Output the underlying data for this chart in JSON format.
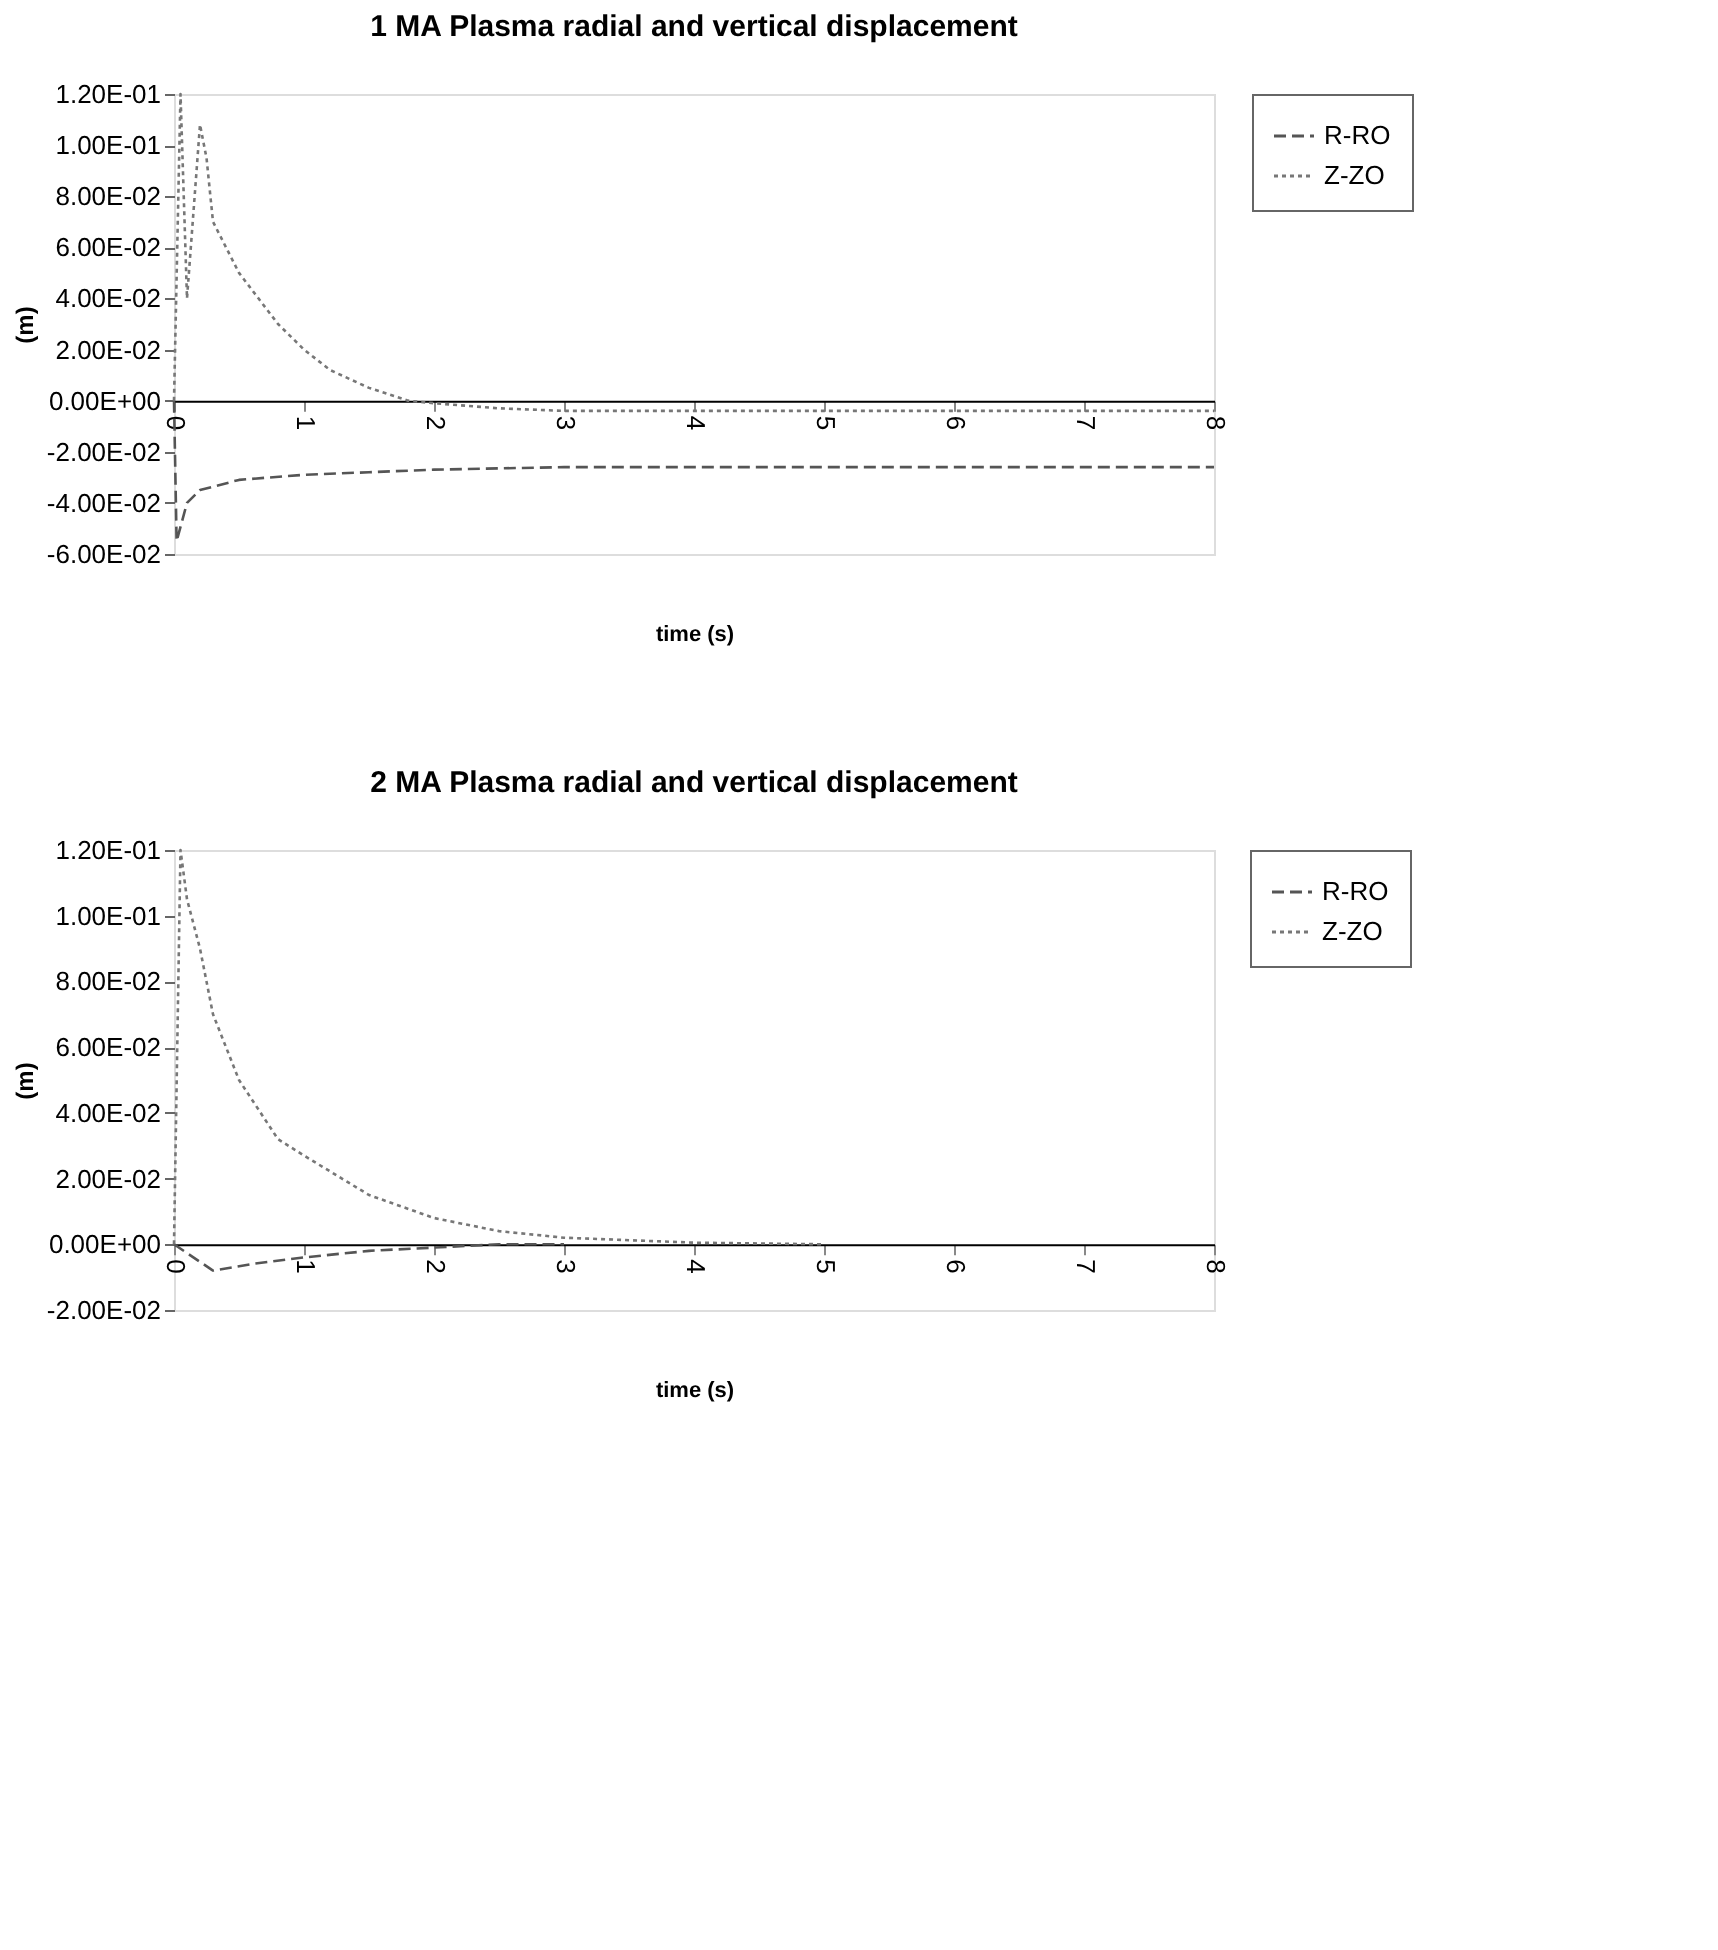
{
  "chart_data": [
    {
      "type": "line",
      "title": "1 MA Plasma radial and vertical displacement",
      "xlabel": "time (s)",
      "ylabel": "(m)",
      "xlim": [
        0,
        8
      ],
      "xticks": [
        0,
        1,
        2,
        3,
        4,
        5,
        6,
        7,
        8
      ],
      "ylim": [
        -0.06,
        0.12
      ],
      "yticks": [
        {
          "value": 0.12,
          "label": "1.20E-01"
        },
        {
          "value": 0.1,
          "label": "1.00E-01"
        },
        {
          "value": 0.08,
          "label": "8.00E-02"
        },
        {
          "value": 0.06,
          "label": "6.00E-02"
        },
        {
          "value": 0.04,
          "label": "4.00E-02"
        },
        {
          "value": 0.02,
          "label": "2.00E-02"
        },
        {
          "value": 0,
          "label": "0.00E+00"
        },
        {
          "value": -0.02,
          "label": "-2.00E-02"
        },
        {
          "value": -0.04,
          "label": "-4.00E-02"
        },
        {
          "value": -0.06,
          "label": "-6.00E-02"
        }
      ],
      "grid": false,
      "legend": "right",
      "series": [
        {
          "name": "R-RO",
          "color": "#555555",
          "line_style": "dashed",
          "x": [
            0,
            0.02,
            0.1,
            0.2,
            0.5,
            1,
            1.5,
            2,
            3,
            4,
            5,
            6,
            7,
            8
          ],
          "values": [
            0,
            -0.055,
            -0.04,
            -0.035,
            -0.031,
            -0.029,
            -0.028,
            -0.027,
            -0.026,
            -0.026,
            -0.026,
            -0.026,
            -0.026,
            -0.026
          ]
        },
        {
          "name": "Z-ZO",
          "color": "#777777",
          "line_style": "dotted",
          "x": [
            0,
            0.05,
            0.1,
            0.2,
            0.25,
            0.3,
            0.5,
            0.8,
            1,
            1.2,
            1.5,
            1.8,
            2,
            2.5,
            3,
            4,
            5,
            6,
            7,
            8
          ],
          "values": [
            0,
            0.12,
            0.04,
            0.108,
            0.095,
            0.07,
            0.05,
            0.03,
            0.02,
            0.012,
            0.005,
            0,
            -0.001,
            -0.003,
            -0.004,
            -0.004,
            -0.004,
            -0.004,
            -0.004,
            -0.004
          ]
        }
      ]
    },
    {
      "type": "line",
      "title": "2 MA Plasma radial and vertical displacement",
      "xlabel": "time (s)",
      "ylabel": "(m)",
      "xlim": [
        0,
        8
      ],
      "xticks": [
        0,
        1,
        2,
        3,
        4,
        5,
        6,
        7,
        8
      ],
      "ylim": [
        -0.02,
        0.12
      ],
      "yticks": [
        {
          "value": 0.12,
          "label": "1.20E-01"
        },
        {
          "value": 0.1,
          "label": "1.00E-01"
        },
        {
          "value": 0.08,
          "label": "8.00E-02"
        },
        {
          "value": 0.06,
          "label": "6.00E-02"
        },
        {
          "value": 0.04,
          "label": "4.00E-02"
        },
        {
          "value": 0.02,
          "label": "2.00E-02"
        },
        {
          "value": 0,
          "label": "0.00E+00"
        },
        {
          "value": -0.02,
          "label": "-2.00E-02"
        }
      ],
      "grid": false,
      "legend": "right",
      "series": [
        {
          "name": "R-RO",
          "color": "#555555",
          "line_style": "dashed",
          "x": [
            0,
            0.3,
            0.6,
            1,
            1.5,
            2,
            2.5,
            3
          ],
          "values": [
            0,
            -0.008,
            -0.006,
            -0.004,
            -0.002,
            -0.001,
            0,
            0
          ]
        },
        {
          "name": "Z-ZO",
          "color": "#777777",
          "line_style": "dotted",
          "x": [
            0,
            0.05,
            0.1,
            0.2,
            0.3,
            0.5,
            0.8,
            1,
            1.5,
            2,
            2.5,
            3,
            4,
            5
          ],
          "values": [
            0,
            0.12,
            0.105,
            0.09,
            0.07,
            0.05,
            0.032,
            0.027,
            0.015,
            0.008,
            0.004,
            0.002,
            0.0005,
            0
          ]
        }
      ]
    }
  ]
}
